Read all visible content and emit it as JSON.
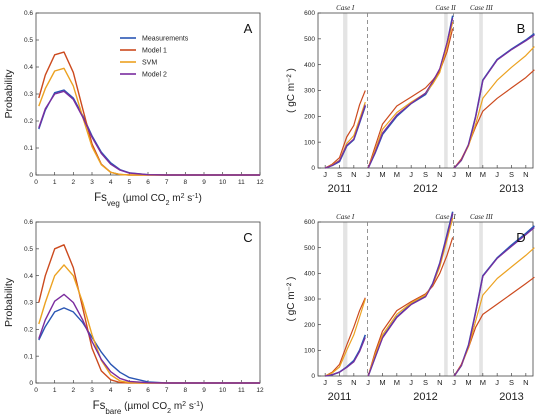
{
  "colors": {
    "measurements": "#2a56b4",
    "model1": "#cc4a1e",
    "svm": "#eca221",
    "model2": "#7a2c9e",
    "case_band": "#e4e4e4",
    "divider": "#888888"
  },
  "legend": {
    "items": [
      "Measurements",
      "Model 1",
      "SVM",
      "Model 2"
    ]
  },
  "chart_data": [
    {
      "id": "A",
      "panel_label": "A",
      "type": "line",
      "ylabel": "Probability",
      "xlabel": {
        "prefix": "Fs",
        "sub": "veg",
        "mid": " (µmol CO",
        "sub2": "2",
        "after": " m",
        "sup": "2",
        "after2": " s",
        "sup2": "-1",
        "end": ")"
      },
      "xlim": [
        0,
        12
      ],
      "ylim": [
        0,
        0.6
      ],
      "xticks": [
        "0",
        "1",
        "2",
        "3",
        "4",
        "5",
        "6",
        "7",
        "8",
        "9",
        "10",
        "11",
        "12"
      ],
      "yticks": [
        "0",
        "0.1",
        "0.2",
        "0.3",
        "0.4",
        "0.5",
        "0.6"
      ],
      "x": [
        0.15,
        0.5,
        1.0,
        1.5,
        2.0,
        2.5,
        3.0,
        3.5,
        4.0,
        4.5,
        5.0,
        6.0,
        7.0,
        8.0,
        12.0
      ],
      "series": [
        {
          "name": "Measurements",
          "color_key": "measurements",
          "values": [
            0.17,
            0.24,
            0.305,
            0.315,
            0.285,
            0.22,
            0.145,
            0.085,
            0.045,
            0.02,
            0.008,
            0.001,
            0,
            0,
            0
          ]
        },
        {
          "name": "Model 1",
          "color_key": "model1",
          "values": [
            0.285,
            0.37,
            0.445,
            0.455,
            0.38,
            0.245,
            0.115,
            0.04,
            0.01,
            0.002,
            0,
            0,
            0,
            0,
            0
          ]
        },
        {
          "name": "SVM",
          "color_key": "svm",
          "values": [
            0.255,
            0.32,
            0.385,
            0.395,
            0.33,
            0.215,
            0.105,
            0.038,
            0.01,
            0.002,
            0,
            0,
            0,
            0,
            0
          ]
        },
        {
          "name": "Model 2",
          "color_key": "model2",
          "values": [
            0.175,
            0.245,
            0.3,
            0.31,
            0.28,
            0.215,
            0.14,
            0.08,
            0.04,
            0.018,
            0.007,
            0.001,
            0,
            0,
            0
          ]
        }
      ]
    },
    {
      "id": "B",
      "panel_label": "B",
      "type": "line",
      "ylabel": "( gC m⁻² )",
      "ylim": [
        0,
        600
      ],
      "yticks": [
        "0",
        "100",
        "200",
        "300",
        "400",
        "500",
        "600"
      ],
      "months": [
        "J",
        "S",
        "N",
        "J",
        "M",
        "M",
        "J",
        "S",
        "N",
        "J",
        "M",
        "M",
        "J",
        "S",
        "N"
      ],
      "years": [
        "2011",
        "2012",
        "2013"
      ],
      "cases": [
        "Case I",
        "Case II",
        "Case III"
      ],
      "segments": [
        {
          "t": [
            0,
            0.5,
            1.0,
            1.5,
            2.0,
            2.4,
            2.8
          ],
          "series": {
            "measurements": [
              0,
              10,
              25,
              85,
              110,
              175,
              240
            ],
            "model1": [
              0,
              15,
              40,
              120,
              165,
              245,
              300
            ],
            "svm": [
              0,
              12,
              30,
              95,
              125,
              190,
              255
            ],
            "model2": [
              0,
              10,
              28,
              88,
              112,
              178,
              245
            ]
          }
        },
        {
          "t": [
            3.0,
            3.5,
            4.0,
            5.0,
            6.0,
            7.0,
            7.5,
            8.0,
            8.5,
            8.9
          ],
          "series": {
            "measurements": [
              0,
              60,
              130,
              200,
              250,
              285,
              330,
              380,
              480,
              590
            ],
            "model1": [
              0,
              85,
              170,
              240,
              275,
              310,
              340,
              375,
              450,
              540
            ],
            "svm": [
              0,
              70,
              150,
              215,
              255,
              290,
              325,
              370,
              470,
              565
            ],
            "model2": [
              0,
              62,
              135,
              205,
              250,
              290,
              335,
              385,
              485,
              580
            ]
          }
        },
        {
          "t": [
            9.0,
            9.5,
            10.0,
            10.5,
            11.0,
            12.0,
            13.0,
            14.0,
            14.6
          ],
          "series": {
            "measurements": [
              0,
              30,
              90,
              200,
              340,
              420,
              460,
              495,
              520
            ],
            "model1": [
              0,
              35,
              90,
              160,
              220,
              270,
              310,
              350,
              380
            ],
            "svm": [
              0,
              30,
              85,
              170,
              270,
              340,
              390,
              435,
              470
            ],
            "model2": [
              0,
              30,
              90,
              198,
              338,
              418,
              458,
              492,
              515
            ]
          }
        }
      ]
    },
    {
      "id": "C",
      "panel_label": "C",
      "type": "line",
      "ylabel": "Probability",
      "xlabel": {
        "prefix": "Fs",
        "sub": "bare",
        "mid": " (µmol CO",
        "sub2": "2",
        "after": " m",
        "sup": "2",
        "after2": " s",
        "sup2": "-1",
        "end": ")"
      },
      "xlim": [
        0,
        12
      ],
      "ylim": [
        0,
        0.6
      ],
      "xticks": [
        "0",
        "1",
        "2",
        "3",
        "4",
        "5",
        "6",
        "7",
        "8",
        "9",
        "10",
        "11",
        "12"
      ],
      "yticks": [
        "0",
        "0.1",
        "0.2",
        "0.3",
        "0.4",
        "0.5",
        "0.6"
      ],
      "x": [
        0.15,
        0.5,
        1.0,
        1.5,
        2.0,
        2.5,
        3.0,
        3.5,
        4.0,
        4.5,
        5.0,
        6.0,
        7.0,
        8.0,
        12.0
      ],
      "series": [
        {
          "name": "Measurements",
          "color_key": "measurements",
          "values": [
            0.16,
            0.21,
            0.265,
            0.28,
            0.265,
            0.225,
            0.17,
            0.115,
            0.07,
            0.04,
            0.02,
            0.004,
            0,
            0,
            0
          ]
        },
        {
          "name": "Model 1",
          "color_key": "model1",
          "values": [
            0.3,
            0.4,
            0.5,
            0.515,
            0.43,
            0.28,
            0.13,
            0.045,
            0.012,
            0.002,
            0,
            0,
            0,
            0,
            0
          ]
        },
        {
          "name": "SVM",
          "color_key": "svm",
          "values": [
            0.22,
            0.3,
            0.4,
            0.44,
            0.4,
            0.3,
            0.18,
            0.085,
            0.03,
            0.008,
            0.001,
            0,
            0,
            0,
            0
          ]
        },
        {
          "name": "Model 2",
          "color_key": "model2",
          "values": [
            0.165,
            0.235,
            0.305,
            0.33,
            0.3,
            0.235,
            0.155,
            0.088,
            0.042,
            0.017,
            0.006,
            0.001,
            0,
            0,
            0
          ]
        }
      ]
    },
    {
      "id": "D",
      "panel_label": "D",
      "type": "line",
      "ylabel": "( gC m⁻² )",
      "ylim": [
        0,
        600
      ],
      "yticks": [
        "0",
        "100",
        "200",
        "300",
        "400",
        "500",
        "600"
      ],
      "months": [
        "J",
        "S",
        "N",
        "J",
        "M",
        "M",
        "J",
        "S",
        "N",
        "J",
        "M",
        "M",
        "J",
        "S",
        "N"
      ],
      "years": [
        "2011",
        "2012",
        "2013"
      ],
      "cases": [
        "Case I",
        "Case II",
        "Case III"
      ],
      "segments": [
        {
          "t": [
            0,
            0.5,
            1.0,
            1.5,
            2.0,
            2.4,
            2.8
          ],
          "series": {
            "measurements": [
              0,
              5,
              15,
              35,
              60,
              100,
              160
            ],
            "model1": [
              0,
              15,
              45,
              120,
              190,
              255,
              305
            ],
            "svm": [
              0,
              12,
              35,
              100,
              160,
              230,
              300
            ],
            "model2": [
              0,
              5,
              15,
              33,
              55,
              95,
              150
            ]
          }
        },
        {
          "t": [
            3.0,
            3.5,
            4.0,
            5.0,
            6.0,
            7.0,
            7.5,
            8.0,
            8.5,
            8.9
          ],
          "series": {
            "measurements": [
              0,
              75,
              150,
              230,
              280,
              310,
              360,
              440,
              550,
              640
            ],
            "model1": [
              0,
              95,
              175,
              255,
              290,
              320,
              350,
              400,
              470,
              540
            ],
            "svm": [
              0,
              85,
              160,
              240,
              285,
              315,
              355,
              425,
              530,
              615
            ],
            "model2": [
              0,
              75,
              148,
              228,
              278,
              308,
              358,
              438,
              545,
              635
            ]
          }
        },
        {
          "t": [
            9.0,
            9.5,
            10.0,
            10.5,
            11.0,
            12.0,
            13.0,
            14.0,
            14.6
          ],
          "series": {
            "measurements": [
              0,
              40,
              120,
              250,
              390,
              460,
              510,
              555,
              585
            ],
            "model1": [
              0,
              45,
              110,
              190,
              240,
              280,
              320,
              360,
              385
            ],
            "svm": [
              0,
              40,
              110,
              215,
              315,
              380,
              425,
              470,
              500
            ],
            "model2": [
              0,
              40,
              118,
              248,
              388,
              458,
              505,
              550,
              578
            ]
          }
        }
      ]
    }
  ]
}
